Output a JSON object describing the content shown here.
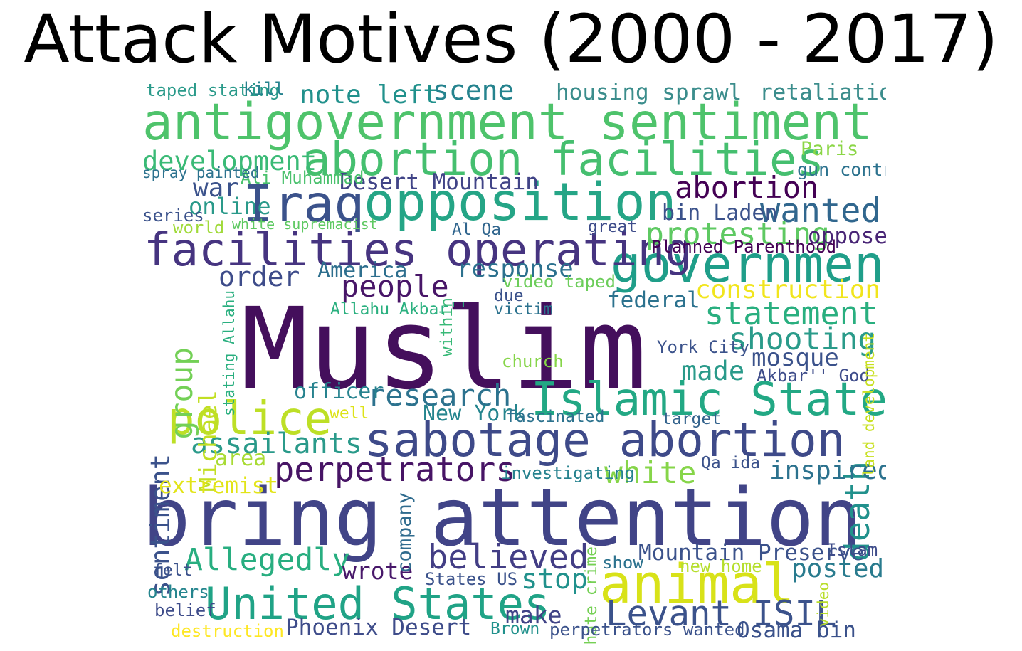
{
  "chart_data": {
    "type": "wordcloud",
    "title": "Attack Motives (2000 - 2017)",
    "colormap": "viridis",
    "background": "#ffffff",
    "words": [
      {
        "text": "Muslim",
        "weight": 1.0,
        "color": "#440f5c"
      },
      {
        "text": "bring attention",
        "weight": 0.84,
        "color": "#414487"
      },
      {
        "text": "antigovernment sentiment",
        "weight": 0.5,
        "color": "#4ec36b"
      },
      {
        "text": "opposition",
        "weight": 0.52,
        "color": "#25a586"
      },
      {
        "text": "Iraq",
        "weight": 0.5,
        "color": "#3b528b"
      },
      {
        "text": "abortion facilities",
        "weight": 0.44,
        "color": "#45bf6f"
      },
      {
        "text": "government",
        "weight": 0.5,
        "color": "#1f9e89"
      },
      {
        "text": "facilities operating",
        "weight": 0.44,
        "color": "#463480"
      },
      {
        "text": "sabotage abortion",
        "weight": 0.46,
        "color": "#3e4a89"
      },
      {
        "text": "animal",
        "weight": 0.54,
        "color": "#d8e219"
      },
      {
        "text": "Islamic State",
        "weight": 0.44,
        "color": "#22a884"
      },
      {
        "text": "police",
        "weight": 0.44,
        "color": "#bddf26"
      },
      {
        "text": "United States",
        "weight": 0.42,
        "color": "#20a386"
      },
      {
        "text": "wanted",
        "weight": 0.3,
        "color": "#31678e"
      },
      {
        "text": "Levant ISIL",
        "weight": 0.31,
        "color": "#3b528b"
      },
      {
        "text": "perpetrators",
        "weight": 0.3,
        "color": "#471465"
      },
      {
        "text": "believed",
        "weight": 0.3,
        "color": "#433e85"
      },
      {
        "text": "death",
        "weight": 0.3,
        "color": "#21918c"
      },
      {
        "text": "statement",
        "weight": 0.28,
        "color": "#29af7f"
      },
      {
        "text": "protesting",
        "weight": 0.26,
        "color": "#5ec962"
      },
      {
        "text": "shooting",
        "weight": 0.26,
        "color": "#2a9b8a"
      },
      {
        "text": "abortion",
        "weight": 0.25,
        "color": "#440154"
      },
      {
        "text": "research",
        "weight": 0.25,
        "color": "#2c728e"
      },
      {
        "text": "Allegedly",
        "weight": 0.26,
        "color": "#28ae80"
      },
      {
        "text": "white",
        "weight": 0.26,
        "color": "#86d549"
      },
      {
        "text": "people",
        "weight": 0.25,
        "color": "#481668"
      },
      {
        "text": "assailants",
        "weight": 0.24,
        "color": "#2a9a8a"
      },
      {
        "text": "group",
        "weight": 0.26,
        "color": "#73d056"
      },
      {
        "text": "Michael",
        "weight": 0.19,
        "color": "#c2df23"
      },
      {
        "text": "sentiment",
        "weight": 0.21,
        "color": "#3b528b"
      },
      {
        "text": "development",
        "weight": 0.21,
        "color": "#3aba76"
      },
      {
        "text": "order",
        "weight": 0.22,
        "color": "#3e4c8a"
      },
      {
        "text": "response",
        "weight": 0.19,
        "color": "#2c718e"
      },
      {
        "text": "construction",
        "weight": 0.2,
        "color": "#f1e51d"
      },
      {
        "text": "note left",
        "weight": 0.2,
        "color": "#21918c"
      },
      {
        "text": "scene",
        "weight": 0.22,
        "color": "#25838e"
      },
      {
        "text": "made",
        "weight": 0.21,
        "color": "#2a9a8a"
      },
      {
        "text": "mosque",
        "weight": 0.19,
        "color": "#3b528b"
      },
      {
        "text": "stop",
        "weight": 0.23,
        "color": "#21918c"
      },
      {
        "text": "posted",
        "weight": 0.2,
        "color": "#297b8e"
      },
      {
        "text": "inspired",
        "weight": 0.2,
        "color": "#2c728e"
      },
      {
        "text": "make",
        "weight": 0.18,
        "color": "#414487"
      },
      {
        "text": "wrote",
        "weight": 0.18,
        "color": "#48186a"
      },
      {
        "text": "war",
        "weight": 0.2,
        "color": "#3b528b"
      },
      {
        "text": "online",
        "weight": 0.17,
        "color": "#2a9a8a"
      },
      {
        "text": "extremist",
        "weight": 0.16,
        "color": "#e2e418"
      },
      {
        "text": "area",
        "weight": 0.15,
        "color": "#a8db34"
      },
      {
        "text": "housing sprawl",
        "weight": 0.16,
        "color": "#3b8d8c"
      },
      {
        "text": "retaliation",
        "weight": 0.16,
        "color": "#3b8d8c"
      },
      {
        "text": "Desert Mountain",
        "weight": 0.16,
        "color": "#414487"
      },
      {
        "text": "bin Laden",
        "weight": 0.15,
        "color": "#3b528b"
      },
      {
        "text": "opposed",
        "weight": 0.16,
        "color": "#482475"
      },
      {
        "text": "America",
        "weight": 0.15,
        "color": "#2e6f8e"
      },
      {
        "text": "federal",
        "weight": 0.16,
        "color": "#2c728e"
      },
      {
        "text": "officer",
        "weight": 0.15,
        "color": "#26828e"
      },
      {
        "text": "New York",
        "weight": 0.15,
        "color": "#25858e"
      },
      {
        "text": "Mountain Preserve",
        "weight": 0.16,
        "color": "#3b528b"
      },
      {
        "text": "Phoenix Desert",
        "weight": 0.16,
        "color": "#3e4c8a"
      },
      {
        "text": "Osama bin",
        "weight": 0.16,
        "color": "#3b528b"
      },
      {
        "text": "company",
        "weight": 0.13,
        "color": "#2f6b8e"
      },
      {
        "text": "Paris",
        "weight": 0.13,
        "color": "#8bd646"
      },
      {
        "text": "gun control",
        "weight": 0.11,
        "color": "#2c728e"
      },
      {
        "text": "Ali Muhammad",
        "weight": 0.1,
        "color": "#4ac16d"
      },
      {
        "text": "Planned Parenthood",
        "weight": 0.1,
        "color": "#440154"
      },
      {
        "text": "taped stating",
        "weight": 0.1,
        "color": "#2a9a8a"
      },
      {
        "text": "kill",
        "weight": 0.1,
        "color": "#26828e"
      },
      {
        "text": "spray painted",
        "weight": 0.08,
        "color": "#2c728e"
      },
      {
        "text": "series",
        "weight": 0.1,
        "color": "#3b528b"
      },
      {
        "text": "world",
        "weight": 0.1,
        "color": "#a0da39"
      },
      {
        "text": "white supremacist",
        "weight": 0.07,
        "color": "#5ec962"
      },
      {
        "text": "Al Qa",
        "weight": 0.09,
        "color": "#31668e"
      },
      {
        "text": "great",
        "weight": 0.09,
        "color": "#3e4c8a"
      },
      {
        "text": "video taped",
        "weight": 0.1,
        "color": "#6ccd5a"
      },
      {
        "text": "due",
        "weight": 0.09,
        "color": "#3b528b"
      },
      {
        "text": "Allahu Akbar''",
        "weight": 0.09,
        "color": "#2ab07f"
      },
      {
        "text": "victim",
        "weight": 0.09,
        "color": "#2c728e"
      },
      {
        "text": "within",
        "weight": 0.09,
        "color": "#38b977"
      },
      {
        "text": "stating Allahu",
        "weight": 0.08,
        "color": "#29af7f"
      },
      {
        "text": "York City",
        "weight": 0.1,
        "color": "#3b528b"
      },
      {
        "text": "Akbar'' God",
        "weight": 0.1,
        "color": "#3e4c8a"
      },
      {
        "text": "land development",
        "weight": 0.08,
        "color": "#c8e020"
      },
      {
        "text": "church",
        "weight": 0.1,
        "color": "#86d549"
      },
      {
        "text": "well",
        "weight": 0.09,
        "color": "#dde318"
      },
      {
        "text": "fascinated",
        "weight": 0.09,
        "color": "#2c728e"
      },
      {
        "text": "target",
        "weight": 0.09,
        "color": "#33638d"
      },
      {
        "text": "Qa ida",
        "weight": 0.09,
        "color": "#3b528b"
      },
      {
        "text": "investigating",
        "weight": 0.1,
        "color": "#26828e"
      },
      {
        "text": "hate crime",
        "weight": 0.09,
        "color": "#75d054"
      },
      {
        "text": "show",
        "weight": 0.1,
        "color": "#2c728e"
      },
      {
        "text": "new home",
        "weight": 0.1,
        "color": "#b5de2b"
      },
      {
        "text": "States US",
        "weight": 0.1,
        "color": "#3b528b"
      },
      {
        "text": "Islam",
        "weight": 0.1,
        "color": "#3e4c8a"
      },
      {
        "text": "felt",
        "weight": 0.09,
        "color": "#3b528b"
      },
      {
        "text": "others",
        "weight": 0.1,
        "color": "#25858e"
      },
      {
        "text": "belief",
        "weight": 0.1,
        "color": "#3e4c8a"
      },
      {
        "text": "destruction",
        "weight": 0.1,
        "color": "#fde725"
      },
      {
        "text": "Brown",
        "weight": 0.09,
        "color": "#21918c"
      },
      {
        "text": "perpetrators wanted",
        "weight": 0.1,
        "color": "#3b528b"
      },
      {
        "text": "video",
        "weight": 0.08,
        "color": "#b8de29"
      }
    ]
  }
}
